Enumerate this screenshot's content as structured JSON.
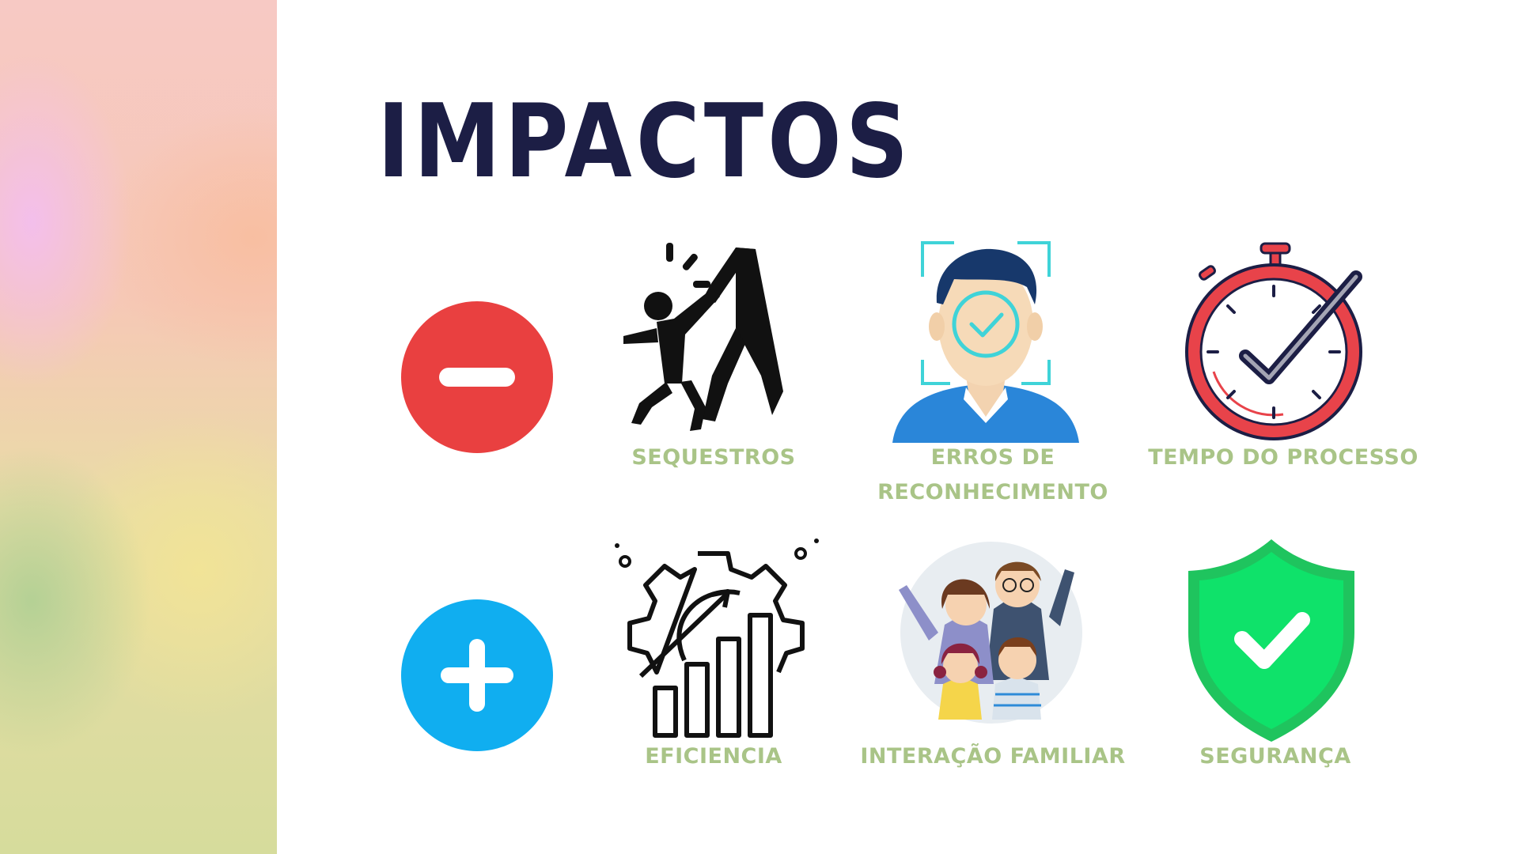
{
  "title": "IMPACTOS",
  "negative_row": {
    "sign_icon": "minus-circle-icon",
    "color": "#e94040",
    "items": [
      {
        "label": "SEQUESTROS",
        "icon": "kidnapping-icon"
      },
      {
        "label": "ERROS DE RECONHECIMENTO",
        "icon": "face-recognition-icon"
      },
      {
        "label": "TEMPO DO PROCESSO",
        "icon": "stopwatch-icon"
      }
    ]
  },
  "positive_row": {
    "sign_icon": "plus-circle-icon",
    "color": "#10aef0",
    "items": [
      {
        "label": "EFICIENCIA",
        "icon": "efficiency-gear-chart-icon"
      },
      {
        "label": "INTERAÇÃO FAMILIAR",
        "icon": "family-icon"
      },
      {
        "label": "SEGURANÇA",
        "icon": "security-shield-icon"
      }
    ]
  },
  "colors": {
    "title": "#1c1e45",
    "label": "#a9c487",
    "shield": "#0fe26a"
  }
}
